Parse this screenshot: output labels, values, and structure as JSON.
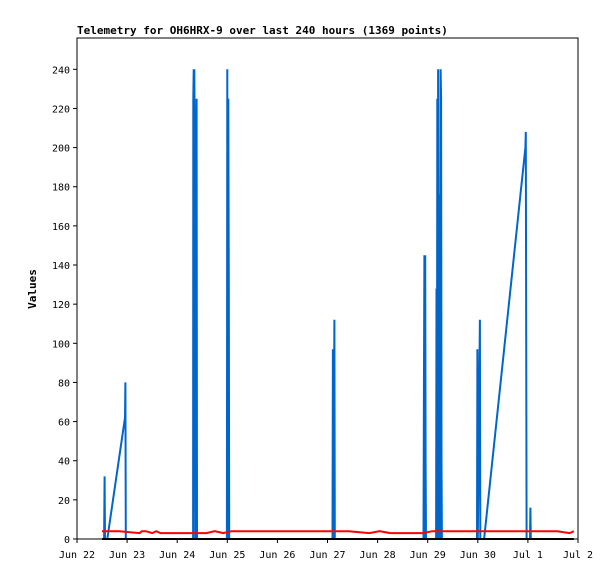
{
  "chart_data": {
    "type": "line",
    "title": "Telemetry for OH6HRX-9 over last 240 hours (1369 points)",
    "ylabel": "Values",
    "xlabel": "",
    "ylim": [
      0,
      256
    ],
    "xlim": [
      0,
      240
    ],
    "grid": false,
    "legend": "none",
    "x_ticks": [
      {
        "label": "Jun 22",
        "x": 0
      },
      {
        "label": "Jun 23",
        "x": 24
      },
      {
        "label": "Jun 24",
        "x": 48
      },
      {
        "label": "Jun 25",
        "x": 72
      },
      {
        "label": "Jun 26",
        "x": 96
      },
      {
        "label": "Jun 27",
        "x": 120
      },
      {
        "label": "Jun 28",
        "x": 144
      },
      {
        "label": "Jun 29",
        "x": 168
      },
      {
        "label": "Jun 30",
        "x": 192
      },
      {
        "label": "Jul 1",
        "x": 216
      },
      {
        "label": "Jul 2",
        "x": 240
      }
    ],
    "y_ticks": [
      0,
      20,
      40,
      60,
      80,
      100,
      120,
      140,
      160,
      180,
      200,
      220,
      240
    ],
    "series": [
      {
        "color": "#0066cc",
        "points": [
          [
            13.0,
            0
          ],
          [
            13.2,
            32
          ],
          [
            13.4,
            0
          ],
          [
            14.5,
            0
          ],
          [
            23.0,
            62
          ],
          [
            23.2,
            80
          ],
          [
            23.4,
            0
          ],
          [
            55.6,
            0
          ],
          [
            55.7,
            225
          ],
          [
            55.9,
            240
          ],
          [
            56.0,
            190
          ],
          [
            56.2,
            240
          ],
          [
            56.4,
            208
          ],
          [
            56.6,
            0
          ],
          [
            56.8,
            16
          ],
          [
            57.0,
            0
          ],
          [
            57.3,
            225
          ],
          [
            57.5,
            0
          ],
          [
            71.8,
            0
          ],
          [
            72.0,
            240
          ],
          [
            72.2,
            0
          ],
          [
            72.5,
            225
          ],
          [
            72.7,
            128
          ],
          [
            72.9,
            0
          ],
          [
            122.4,
            0
          ],
          [
            122.6,
            97
          ],
          [
            122.8,
            0
          ],
          [
            123.3,
            112
          ],
          [
            123.5,
            0
          ],
          [
            166.0,
            0
          ],
          [
            166.2,
            72
          ],
          [
            166.4,
            145
          ],
          [
            166.6,
            0
          ],
          [
            166.8,
            145
          ],
          [
            167.0,
            40
          ],
          [
            167.2,
            0
          ],
          [
            172.0,
            0
          ],
          [
            172.2,
            128
          ],
          [
            172.4,
            0
          ],
          [
            172.6,
            225
          ],
          [
            172.8,
            0
          ],
          [
            173.0,
            240
          ],
          [
            173.2,
            96
          ],
          [
            173.4,
            0
          ],
          [
            173.6,
            145
          ],
          [
            173.8,
            176
          ],
          [
            174.0,
            0
          ],
          [
            174.2,
            240
          ],
          [
            174.4,
            225
          ],
          [
            174.6,
            40
          ],
          [
            174.8,
            0
          ],
          [
            191.6,
            0
          ],
          [
            191.8,
            97
          ],
          [
            192.0,
            0
          ],
          [
            193.0,
            112
          ],
          [
            193.2,
            0
          ],
          [
            195.0,
            0
          ],
          [
            214.8,
            200
          ],
          [
            215.0,
            208
          ],
          [
            215.2,
            104
          ],
          [
            215.4,
            0
          ],
          [
            217.0,
            0
          ],
          [
            217.2,
            16
          ],
          [
            217.4,
            0
          ]
        ]
      },
      {
        "color": "#ff0000",
        "points": [
          [
            12.0,
            4
          ],
          [
            20.0,
            4
          ],
          [
            30.0,
            3
          ],
          [
            31.0,
            4
          ],
          [
            33.0,
            4
          ],
          [
            36.0,
            3
          ],
          [
            38.0,
            4
          ],
          [
            40.0,
            3
          ],
          [
            45.0,
            3
          ],
          [
            50.0,
            3
          ],
          [
            55.0,
            3
          ],
          [
            58.0,
            3
          ],
          [
            62.0,
            3
          ],
          [
            66.0,
            4
          ],
          [
            70.0,
            3
          ],
          [
            74.0,
            4
          ],
          [
            80.0,
            4
          ],
          [
            90.0,
            4
          ],
          [
            100.0,
            4
          ],
          [
            110.0,
            4
          ],
          [
            120.0,
            4
          ],
          [
            130.0,
            4
          ],
          [
            140.0,
            3
          ],
          [
            145.0,
            4
          ],
          [
            150.0,
            3
          ],
          [
            160.0,
            3
          ],
          [
            166.0,
            3
          ],
          [
            170.0,
            4
          ],
          [
            175.0,
            4
          ],
          [
            180.0,
            4
          ],
          [
            190.0,
            4
          ],
          [
            200.0,
            4
          ],
          [
            210.0,
            4
          ],
          [
            220.0,
            4
          ],
          [
            230.0,
            4
          ],
          [
            236.0,
            3
          ],
          [
            238.0,
            4
          ]
        ]
      },
      {
        "color": "#000000",
        "points": [
          [
            12.0,
            0
          ],
          [
            238.0,
            0
          ]
        ]
      }
    ]
  }
}
